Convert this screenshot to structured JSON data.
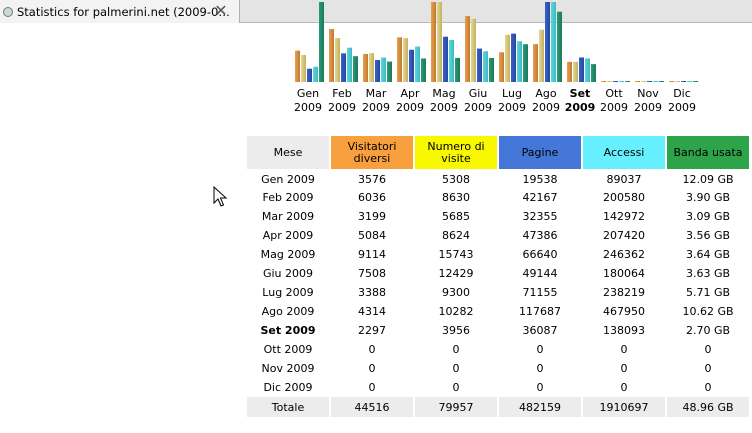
{
  "tab": {
    "title": "Statistics for palmerini.net (2009-0…",
    "close_glyph": "✕",
    "icon": "page-icon"
  },
  "colors": {
    "visitatori": "#f9a03e",
    "visite": "#f8f800",
    "pagine": "#4577d8",
    "accessi": "#66f0ff",
    "banda": "#2ea44a"
  },
  "chart_data": {
    "type": "bar",
    "categories": [
      "Gen 2009",
      "Feb 2009",
      "Mar 2009",
      "Apr 2009",
      "Mag 2009",
      "Giu 2009",
      "Lug 2009",
      "Ago 2009",
      "Set 2009",
      "Ott 2009",
      "Nov 2009",
      "Dic 2009"
    ],
    "highlight": "Set 2009",
    "series": [
      {
        "name": "Visitatori diversi",
        "values": [
          3576,
          6036,
          3199,
          5084,
          9114,
          7508,
          3388,
          4314,
          2297,
          0,
          0,
          0
        ]
      },
      {
        "name": "Numero di visite",
        "values": [
          5308,
          8630,
          5685,
          8624,
          15743,
          12429,
          9300,
          10282,
          3956,
          0,
          0,
          0
        ]
      },
      {
        "name": "Pagine",
        "values": [
          19538,
          42167,
          32355,
          47386,
          66640,
          49144,
          71155,
          117687,
          36087,
          0,
          0,
          0
        ]
      },
      {
        "name": "Accessi",
        "values": [
          89037,
          200580,
          142972,
          207420,
          246362,
          180064,
          238219,
          467950,
          138093,
          0,
          0,
          0
        ]
      },
      {
        "name": "Banda usata",
        "values": [
          12.09,
          3.9,
          3.09,
          3.56,
          3.64,
          3.63,
          5.71,
          10.62,
          2.7,
          0,
          0,
          0
        ],
        "unit": "GB"
      }
    ]
  },
  "table": {
    "headers": [
      "Mese",
      "Visitatori diversi",
      "Numero di visite",
      "Pagine",
      "Accessi",
      "Banda usata"
    ],
    "rows": [
      [
        "Gen 2009",
        "3576",
        "5308",
        "19538",
        "89037",
        "12.09 GB"
      ],
      [
        "Feb 2009",
        "6036",
        "8630",
        "42167",
        "200580",
        "3.90 GB"
      ],
      [
        "Mar 2009",
        "3199",
        "5685",
        "32355",
        "142972",
        "3.09 GB"
      ],
      [
        "Apr 2009",
        "5084",
        "8624",
        "47386",
        "207420",
        "3.56 GB"
      ],
      [
        "Mag 2009",
        "9114",
        "15743",
        "66640",
        "246362",
        "3.64 GB"
      ],
      [
        "Giu 2009",
        "7508",
        "12429",
        "49144",
        "180064",
        "3.63 GB"
      ],
      [
        "Lug 2009",
        "3388",
        "9300",
        "71155",
        "238219",
        "5.71 GB"
      ],
      [
        "Ago 2009",
        "4314",
        "10282",
        "117687",
        "467950",
        "10.62 GB"
      ],
      [
        "Set 2009",
        "2297",
        "3956",
        "36087",
        "138093",
        "2.70 GB"
      ],
      [
        "Ott 2009",
        "0",
        "0",
        "0",
        "0",
        "0"
      ],
      [
        "Nov 2009",
        "0",
        "0",
        "0",
        "0",
        "0"
      ],
      [
        "Dic 2009",
        "0",
        "0",
        "0",
        "0",
        "0"
      ]
    ],
    "current_row": 8,
    "total": [
      "Totale",
      "44516",
      "79957",
      "482159",
      "1910697",
      "48.96 GB"
    ]
  }
}
